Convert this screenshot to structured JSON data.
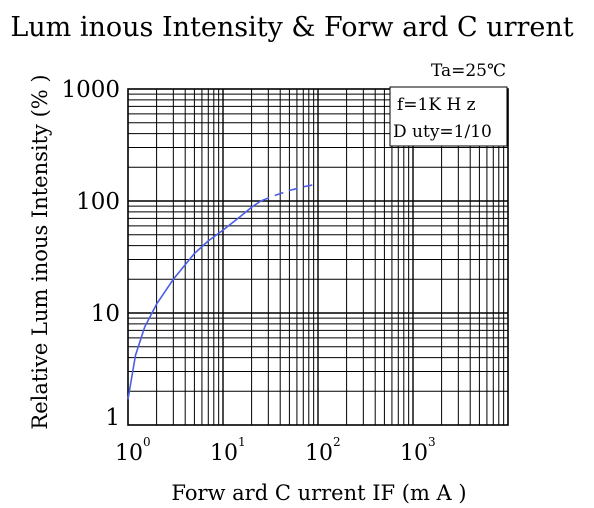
{
  "chart_data": {
    "type": "line",
    "title": "Lum inous Intensity & Forw ard C urrent",
    "xlabel": "Forw ard C urrent IF (m A )",
    "ylabel": "Relative Lum inous Intensity (% )",
    "x_scale": "log",
    "y_scale": "log",
    "xlim": [
      1,
      10000
    ],
    "ylim": [
      1,
      1000
    ],
    "x_ticks": [
      {
        "value": 1,
        "base": "10",
        "exp": "0"
      },
      {
        "value": 10,
        "base": "10",
        "exp": "1"
      },
      {
        "value": 100,
        "base": "10",
        "exp": "2"
      },
      {
        "value": 1000,
        "base": "10",
        "exp": "3"
      }
    ],
    "y_ticks": [
      {
        "value": 1,
        "label": "1"
      },
      {
        "value": 10,
        "label": "10"
      },
      {
        "value": 100,
        "label": "100"
      },
      {
        "value": 1000,
        "label": "1000"
      }
    ],
    "grid": true,
    "annotations": {
      "temperature": "Ta=25℃",
      "frequency": "f=1K H z",
      "duty": "D uty=1/10"
    },
    "series_color": "#4a5ee8",
    "series": [
      {
        "style": "solid",
        "x": [
          1,
          1.2,
          1.5,
          2,
          3,
          5,
          7,
          10,
          15,
          20,
          25
        ],
        "y": [
          1.7,
          4.2,
          7.5,
          12,
          20,
          34,
          44,
          55,
          72,
          88,
          100
        ]
      },
      {
        "style": "dashed",
        "x": [
          25,
          35,
          50,
          70,
          100
        ],
        "y": [
          100,
          112,
          124,
          134,
          142
        ]
      }
    ]
  }
}
